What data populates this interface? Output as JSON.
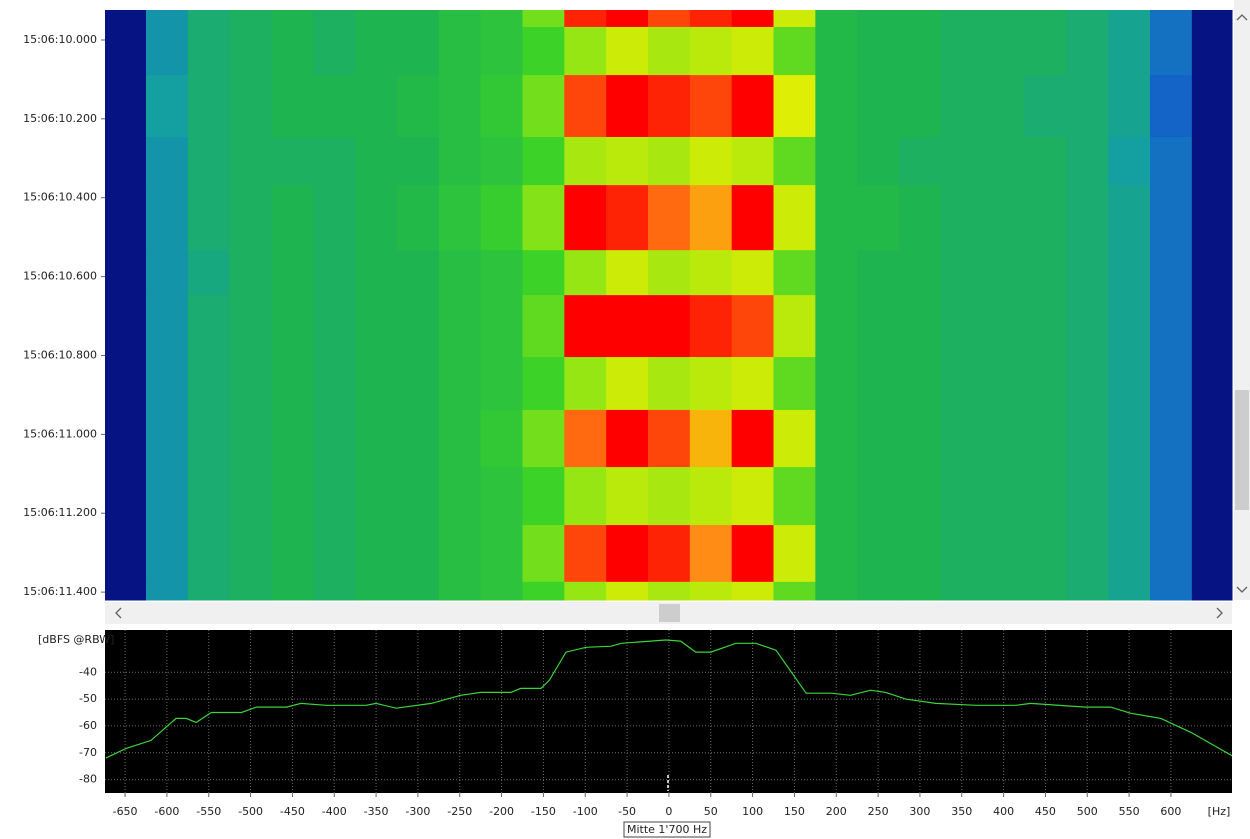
{
  "chart_data": [
    {
      "type": "heatmap",
      "xbins": [
        -675,
        -625,
        -575,
        -525,
        -475,
        -425,
        -375,
        -325,
        -275,
        -225,
        -175,
        -125,
        -75,
        -25,
        25,
        75,
        125,
        175,
        225,
        275,
        325,
        375,
        425,
        475,
        525,
        575,
        625,
        675
      ],
      "ybins": [
        9.924,
        9.967,
        10.089,
        10.246,
        10.368,
        10.533,
        10.647,
        10.804,
        10.938,
        11.083,
        11.23,
        11.374,
        11.42
      ],
      "values": [
        [
          -75,
          -62,
          -58,
          -57,
          -56,
          -57,
          -56,
          -56,
          -54,
          -53,
          -47,
          -32,
          -30,
          -33,
          -32,
          -30,
          -42,
          -55,
          -56,
          -56,
          -57,
          -57,
          -57,
          -58,
          -60,
          -65,
          -75
        ],
        [
          -75,
          -62,
          -58,
          -57,
          -56,
          -57,
          -56,
          -56,
          -54,
          -53,
          -50,
          -45,
          -42,
          -44,
          -43,
          -42,
          -48,
          -55,
          -56,
          -56,
          -57,
          -57,
          -57,
          -58,
          -60,
          -65,
          -75
        ],
        [
          -75,
          -61,
          -58,
          -57,
          -56,
          -56,
          -56,
          -55,
          -54,
          -52,
          -47,
          -33,
          -31,
          -32,
          -33,
          -31,
          -41,
          -55,
          -56,
          -56,
          -57,
          -57,
          -58,
          -58,
          -60,
          -66,
          -75
        ],
        [
          -75,
          -62,
          -58,
          -57,
          -57,
          -57,
          -56,
          -56,
          -54,
          -53,
          -50,
          -44,
          -43,
          -44,
          -42,
          -43,
          -48,
          -55,
          -56,
          -57,
          -57,
          -57,
          -57,
          -58,
          -61,
          -65,
          -75
        ],
        [
          -75,
          -62,
          -58,
          -57,
          -56,
          -57,
          -56,
          -55,
          -53,
          -51,
          -46,
          -31,
          -32,
          -34,
          -36,
          -31,
          -42,
          -55,
          -55,
          -56,
          -57,
          -57,
          -57,
          -58,
          -60,
          -65,
          -75
        ],
        [
          -75,
          -62,
          -59,
          -57,
          -56,
          -57,
          -56,
          -56,
          -54,
          -53,
          -50,
          -45,
          -42,
          -44,
          -43,
          -42,
          -48,
          -55,
          -56,
          -56,
          -57,
          -57,
          -57,
          -58,
          -60,
          -65,
          -75
        ],
        [
          -75,
          -62,
          -58,
          -57,
          -56,
          -57,
          -56,
          -56,
          -54,
          -53,
          -48,
          -31,
          -30,
          -31,
          -32,
          -33,
          -43,
          -55,
          -56,
          -56,
          -57,
          -57,
          -57,
          -58,
          -60,
          -65,
          -75
        ],
        [
          -75,
          -62,
          -58,
          -57,
          -56,
          -57,
          -56,
          -56,
          -54,
          -53,
          -50,
          -45,
          -42,
          -44,
          -43,
          -42,
          -48,
          -55,
          -56,
          -56,
          -57,
          -57,
          -57,
          -58,
          -60,
          -65,
          -75
        ],
        [
          -75,
          -62,
          -58,
          -57,
          -56,
          -57,
          -56,
          -56,
          -54,
          -52,
          -47,
          -34,
          -31,
          -33,
          -37,
          -31,
          -42,
          -55,
          -56,
          -56,
          -57,
          -57,
          -57,
          -58,
          -60,
          -65,
          -75
        ],
        [
          -75,
          -62,
          -58,
          -57,
          -56,
          -57,
          -56,
          -56,
          -54,
          -53,
          -50,
          -45,
          -43,
          -44,
          -43,
          -42,
          -48,
          -55,
          -56,
          -56,
          -57,
          -57,
          -57,
          -58,
          -60,
          -65,
          -75
        ],
        [
          -75,
          -62,
          -58,
          -57,
          -56,
          -57,
          -56,
          -56,
          -54,
          -53,
          -47,
          -33,
          -31,
          -32,
          -35,
          -31,
          -42,
          -55,
          -56,
          -56,
          -57,
          -57,
          -57,
          -58,
          -60,
          -65,
          -75
        ],
        [
          -75,
          -62,
          -58,
          -57,
          -56,
          -57,
          -56,
          -56,
          -54,
          -53,
          -50,
          -45,
          -42,
          -44,
          -43,
          -42,
          -48,
          -55,
          -56,
          -56,
          -57,
          -57,
          -57,
          -58,
          -60,
          -65,
          -75
        ]
      ],
      "xlim": [
        -674,
        673
      ],
      "ylim": [
        9.924,
        11.42
      ],
      "y_inverted": true,
      "yticks": [
        {
          "value": 10.0,
          "label": "15:06:10.000"
        },
        {
          "value": 10.2,
          "label": "15:06:10.200"
        },
        {
          "value": 10.4,
          "label": "15:06:10.400"
        },
        {
          "value": 10.6,
          "label": "15:06:10.600"
        },
        {
          "value": 10.8,
          "label": "15:06:10.800"
        },
        {
          "value": 11.0,
          "label": "15:06:11.000"
        },
        {
          "value": 11.2,
          "label": "15:06:11.200"
        },
        {
          "value": 11.4,
          "label": "15:06:11.400"
        }
      ],
      "zlim": [
        -80,
        -30
      ],
      "colorscale": [
        {
          "value": -80,
          "color": "#000050"
        },
        {
          "value": -72,
          "color": "#0a1ea0"
        },
        {
          "value": -66,
          "color": "#1464c8"
        },
        {
          "value": -61,
          "color": "#14a0a0"
        },
        {
          "value": -56,
          "color": "#1eb450"
        },
        {
          "value": -50,
          "color": "#3cd228"
        },
        {
          "value": -45,
          "color": "#96e614"
        },
        {
          "value": -40,
          "color": "#f0f000"
        },
        {
          "value": -35,
          "color": "#ff8c14"
        },
        {
          "value": -31,
          "color": "#ff0000"
        }
      ]
    },
    {
      "type": "line",
      "ylabel": "[dBFS @RBW]",
      "xlabel": "[Hz]",
      "annotation": "Mitte 1'700 Hz",
      "x": [
        -673,
        -649,
        -619,
        -589,
        -577,
        -565,
        -547,
        -511,
        -493,
        -457,
        -440,
        -410,
        -362,
        -350,
        -326,
        -284,
        -249,
        -225,
        -189,
        -177,
        -153,
        -143,
        -123,
        -99,
        -69,
        -57,
        -4,
        14,
        32,
        50,
        80,
        104,
        128,
        164,
        194,
        217,
        241,
        259,
        283,
        319,
        367,
        415,
        432,
        498,
        528,
        552,
        588,
        624,
        674
      ],
      "values": [
        -72,
        -68.4,
        -65.4,
        -57.2,
        -57.2,
        -58.7,
        -55,
        -55,
        -53,
        -53,
        -51.6,
        -52.3,
        -52.3,
        -51.6,
        -53.4,
        -51.6,
        -48.6,
        -47.5,
        -47.5,
        -46,
        -46,
        -43,
        -32.5,
        -30.7,
        -30.3,
        -29.2,
        -28,
        -28.4,
        -32.5,
        -32.5,
        -29.2,
        -29.2,
        -31.8,
        -47.8,
        -47.8,
        -48.6,
        -46.7,
        -47.5,
        -50,
        -51.6,
        -52.3,
        -52.3,
        -51.6,
        -53,
        -53,
        -55.3,
        -57.2,
        -62.4,
        -71.3
      ],
      "color": "#3cd43c",
      "background": "#000000",
      "xlim": [
        -674,
        673
      ],
      "xticks": [
        -650,
        -600,
        -550,
        -500,
        -450,
        -400,
        -350,
        -300,
        -250,
        -200,
        -150,
        -100,
        -50,
        0,
        50,
        100,
        150,
        200,
        250,
        300,
        350,
        400,
        450,
        500,
        550,
        600
      ],
      "ylim": [
        -85,
        -25
      ],
      "yticks": [
        -80,
        -70,
        -60,
        -50,
        -40
      ],
      "grid": true
    }
  ]
}
